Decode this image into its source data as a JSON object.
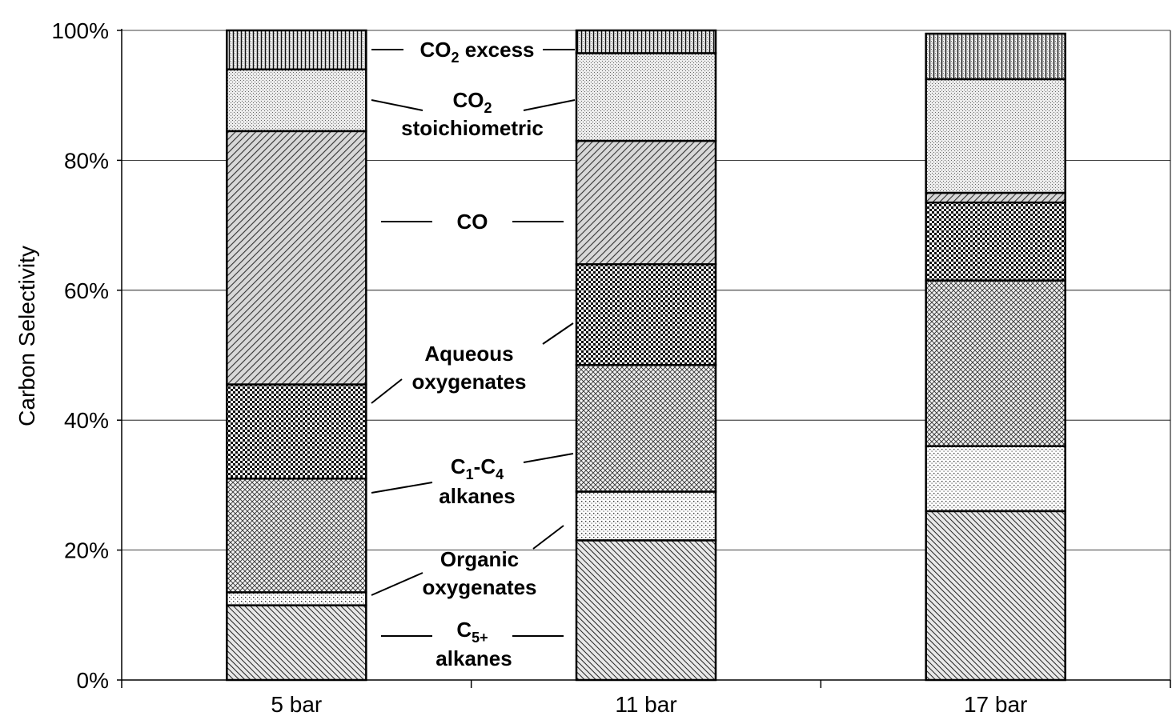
{
  "chart_data": {
    "type": "bar",
    "stacked": true,
    "percent_stacked": true,
    "ylabel": "Carbon Selectivity",
    "xlabel": "",
    "ylim": [
      0,
      100
    ],
    "y_ticks": [
      "0%",
      "20%",
      "40%",
      "60%",
      "80%",
      "100%"
    ],
    "grid": true,
    "categories": [
      "5 bar",
      "11 bar",
      "17 bar"
    ],
    "series": [
      {
        "key": "c5",
        "values": [
          11.5,
          21.5,
          26.0
        ],
        "pattern": "diag-fine",
        "color": "#555555"
      },
      {
        "key": "org",
        "values": [
          2.0,
          7.5,
          10.0
        ],
        "pattern": "dots",
        "color": "#dddddd"
      },
      {
        "key": "c1c4",
        "values": [
          17.5,
          19.5,
          25.5
        ],
        "pattern": "crosshatch",
        "color": "#aaaaaa"
      },
      {
        "key": "aq",
        "values": [
          14.5,
          15.5,
          12.0
        ],
        "pattern": "checker",
        "color": "#222222"
      },
      {
        "key": "co",
        "values": [
          39.0,
          19.0,
          1.5
        ],
        "pattern": "diag-coarse",
        "color": "#777777"
      },
      {
        "key": "co2s",
        "values": [
          9.5,
          13.5,
          17.5
        ],
        "pattern": "stipple",
        "color": "#cccccc"
      },
      {
        "key": "co2e",
        "values": [
          6.0,
          3.5,
          7.0
        ],
        "pattern": "vertical",
        "color": "#666666"
      }
    ],
    "annotations": {
      "co2_excess": {
        "pre": "CO",
        "sub": "2",
        "post": " excess"
      },
      "co2_stoich": {
        "line1_pre": "CO",
        "line1_sub": "2",
        "line2": "stoichiometric"
      },
      "co": {
        "text": "CO"
      },
      "aqueous": {
        "line1": "Aqueous",
        "line2": "oxygenates"
      },
      "c1c4": {
        "p1": "C",
        "s1": "1",
        "p2": "-C",
        "s2": "4",
        "line2": "alkanes"
      },
      "organic": {
        "line1": "Organic",
        "line2": "oxygenates"
      },
      "c5": {
        "p1": "C",
        "s1": "5+",
        "line2": "alkanes"
      }
    }
  }
}
